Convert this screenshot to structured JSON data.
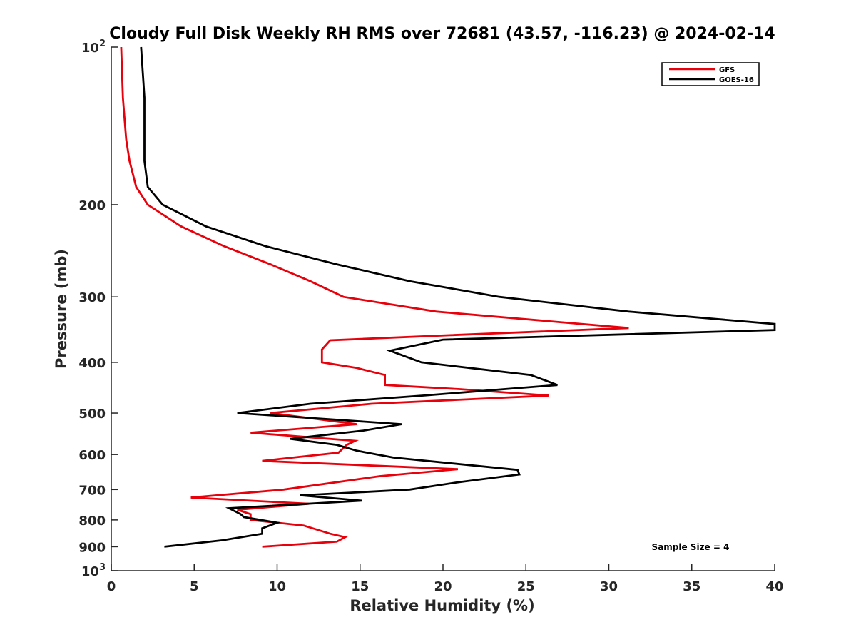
{
  "chart_data": {
    "type": "line",
    "title": "Cloudy Full Disk Weekly RH RMS over 72681 (43.57, -116.23) @ 2024-02-14",
    "xlabel": "Relative Humidity (%)",
    "ylabel": "Pressure (mb)",
    "xlim": [
      0,
      40
    ],
    "ylim": [
      100,
      1000
    ],
    "y_scale": "log",
    "y_reversed": true,
    "x_ticks": [
      0,
      5,
      10,
      15,
      20,
      25,
      30,
      35,
      40
    ],
    "y_ticks": [
      {
        "value": 100,
        "base": "10",
        "exp": "2"
      },
      {
        "value": 200,
        "label": "200"
      },
      {
        "value": 300,
        "label": "300"
      },
      {
        "value": 400,
        "label": "400"
      },
      {
        "value": 500,
        "label": "500"
      },
      {
        "value": 600,
        "label": "600"
      },
      {
        "value": 700,
        "label": "700"
      },
      {
        "value": 800,
        "label": "800"
      },
      {
        "value": 900,
        "label": "900"
      },
      {
        "value": 1000,
        "base": "10",
        "exp": "3"
      }
    ],
    "grid": false,
    "legend_position": "top-right",
    "series": [
      {
        "name": "GFS",
        "color": "#e8000b",
        "points": [
          [
            0.6,
            100
          ],
          [
            0.7,
            125
          ],
          [
            0.9,
            150
          ],
          [
            1.1,
            165
          ],
          [
            1.5,
            185
          ],
          [
            2.2,
            200
          ],
          [
            4.2,
            220
          ],
          [
            6.8,
            240
          ],
          [
            9.6,
            260
          ],
          [
            12.0,
            280
          ],
          [
            14.0,
            300
          ],
          [
            19.6,
            320
          ],
          [
            31.2,
            344
          ],
          [
            20.4,
            355
          ],
          [
            13.2,
            363
          ],
          [
            12.7,
            378
          ],
          [
            12.7,
            400
          ],
          [
            14.8,
            410
          ],
          [
            16.5,
            423
          ],
          [
            16.5,
            442
          ],
          [
            21.0,
            450
          ],
          [
            26.4,
            463
          ],
          [
            15.7,
            480
          ],
          [
            9.6,
            500
          ],
          [
            14.8,
            525
          ],
          [
            8.4,
            545
          ],
          [
            14.7,
            565
          ],
          [
            14.2,
            575
          ],
          [
            13.7,
            595
          ],
          [
            9.1,
            617
          ],
          [
            20.9,
            640
          ],
          [
            16.2,
            660
          ],
          [
            10.4,
            700
          ],
          [
            4.8,
            725
          ],
          [
            11.9,
            745
          ],
          [
            7.6,
            765
          ],
          [
            8.4,
            780
          ],
          [
            8.4,
            790
          ],
          [
            8.4,
            800
          ],
          [
            11.6,
            820
          ],
          [
            13.2,
            850
          ],
          [
            14.1,
            863
          ],
          [
            13.6,
            880
          ],
          [
            9.1,
            900
          ]
        ]
      },
      {
        "name": "GOES-16",
        "color": "#000000",
        "points": [
          [
            1.8,
            100
          ],
          [
            2.0,
            125
          ],
          [
            2.0,
            150
          ],
          [
            2.0,
            165
          ],
          [
            2.2,
            185
          ],
          [
            3.1,
            200
          ],
          [
            5.7,
            220
          ],
          [
            9.3,
            240
          ],
          [
            13.6,
            260
          ],
          [
            18.0,
            280
          ],
          [
            23.4,
            300
          ],
          [
            31.2,
            320
          ],
          [
            40.0,
            338
          ],
          [
            40.0,
            347
          ],
          [
            20.0,
            362
          ],
          [
            16.8,
            380
          ],
          [
            18.7,
            400
          ],
          [
            25.3,
            423
          ],
          [
            26.9,
            442
          ],
          [
            18.8,
            463
          ],
          [
            12.0,
            480
          ],
          [
            7.6,
            500
          ],
          [
            17.5,
            525
          ],
          [
            15.2,
            540
          ],
          [
            10.8,
            560
          ],
          [
            13.6,
            575
          ],
          [
            14.8,
            590
          ],
          [
            17.0,
            608
          ],
          [
            24.5,
            642
          ],
          [
            24.6,
            655
          ],
          [
            20.9,
            678
          ],
          [
            18.0,
            700
          ],
          [
            11.4,
            718
          ],
          [
            15.1,
            735
          ],
          [
            7.1,
            760
          ],
          [
            7.8,
            780
          ],
          [
            8.0,
            790
          ],
          [
            10.0,
            810
          ],
          [
            9.1,
            830
          ],
          [
            9.1,
            850
          ],
          [
            6.7,
            875
          ],
          [
            3.2,
            900
          ]
        ]
      }
    ],
    "annotation": "Sample Size = 4"
  }
}
